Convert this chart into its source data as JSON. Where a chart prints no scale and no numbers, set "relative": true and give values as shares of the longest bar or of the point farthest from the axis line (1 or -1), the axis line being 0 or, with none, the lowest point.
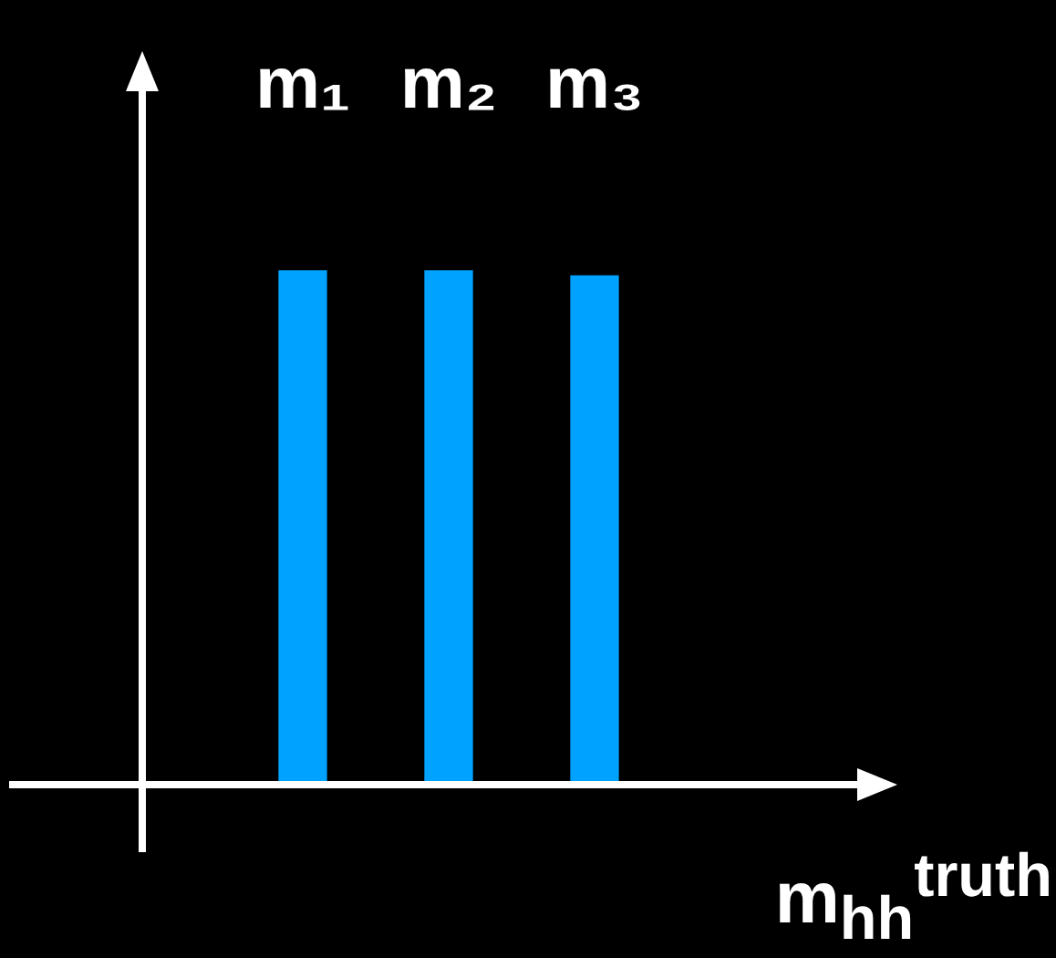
{
  "chart_data": {
    "type": "bar",
    "relative": true,
    "categories": [
      "m₁",
      "m₂",
      "m₃"
    ],
    "values": [
      1,
      1,
      0.99
    ],
    "color": "#00a2ff",
    "xlabel": "m$_{hh}$$^{truth}$",
    "legend": false
  }
}
